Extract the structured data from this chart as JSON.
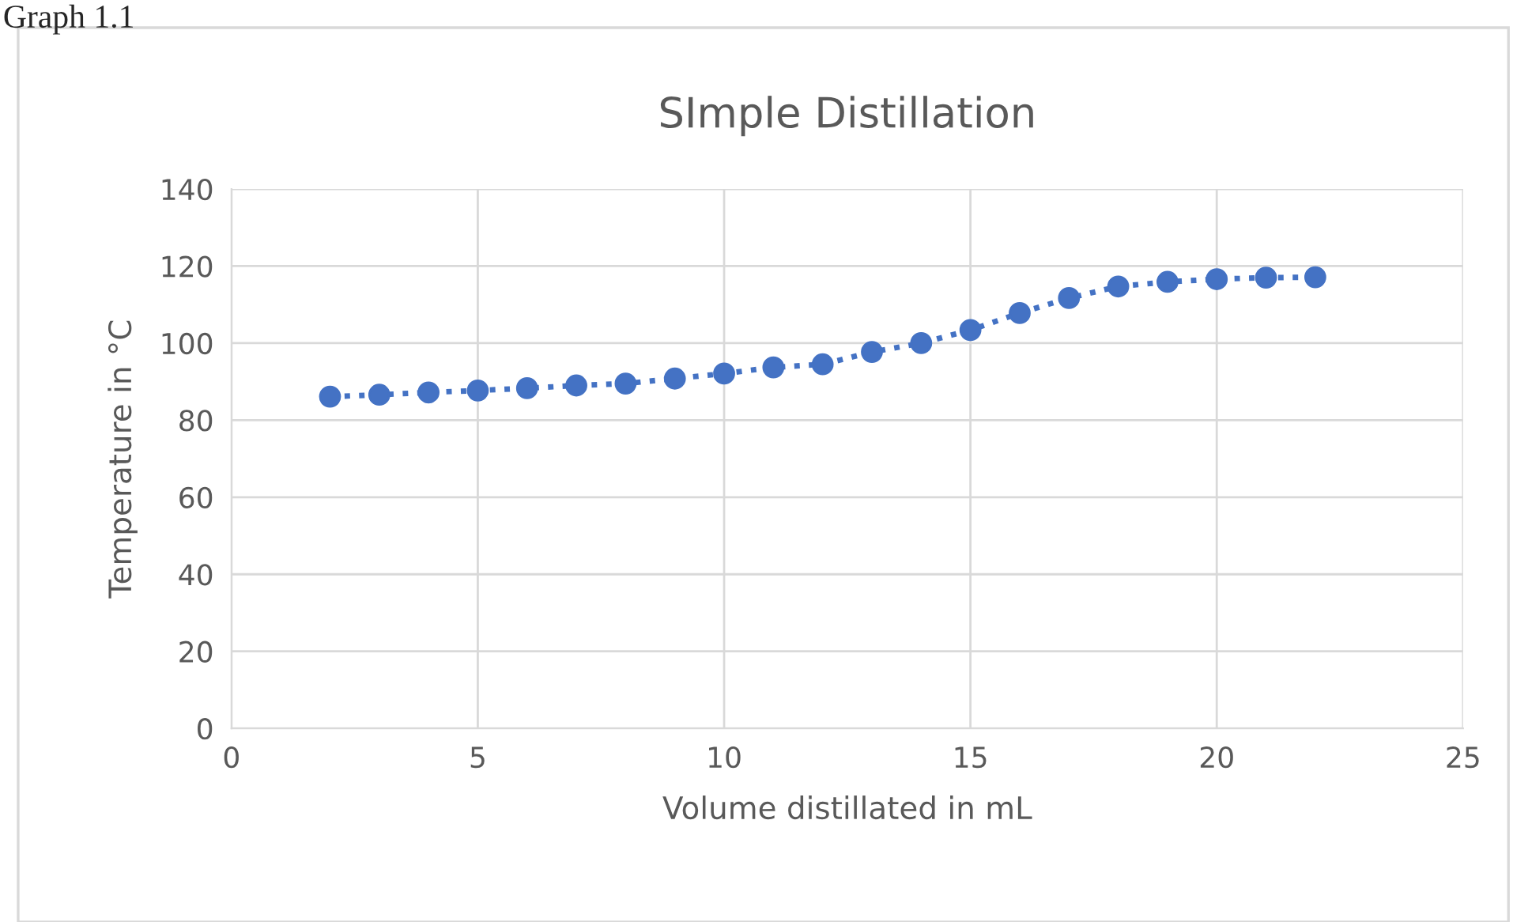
{
  "chart_data": {
    "type": "line",
    "title": "SImple Distillation",
    "xlabel": "Volume distillated in mL",
    "ylabel": "Temperature in °C",
    "annotations": [
      "Graph 1.1"
    ],
    "x": [
      2,
      3,
      4,
      5,
      6,
      7,
      8,
      9,
      10,
      11,
      12,
      13,
      14,
      15,
      16,
      17,
      18,
      19,
      20,
      21,
      22
    ],
    "series": [
      {
        "color": "#4472c4",
        "values": [
          86.1,
          86.6,
          87.2,
          87.7,
          88.3,
          89.0,
          89.5,
          90.8,
          92.1,
          93.7,
          94.5,
          97.7,
          100.0,
          103.4,
          107.8,
          111.7,
          114.7,
          115.9,
          116.6,
          117.0,
          117.1
        ]
      }
    ],
    "xlim": [
      0,
      25
    ],
    "xticks": [
      0,
      5,
      10,
      15,
      20,
      25
    ],
    "ylim": [
      0,
      140
    ],
    "yticks": [
      0,
      20,
      40,
      60,
      80,
      100,
      120,
      140
    ],
    "grid": true,
    "marker": "circle",
    "line_style": "dotted",
    "legend": false
  }
}
